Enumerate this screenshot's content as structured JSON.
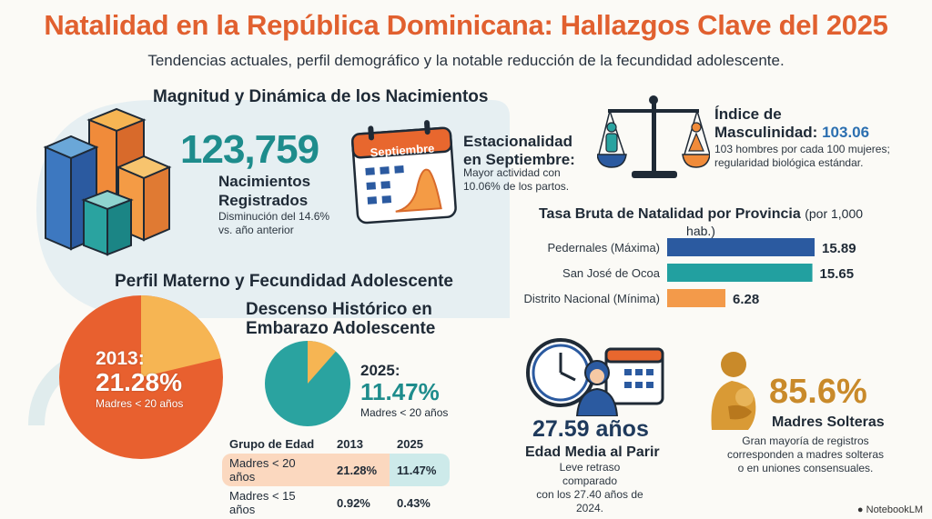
{
  "header": {
    "title": "Natalidad en la República Dominicana: Hallazgos Clave del 2025",
    "subtitle": "Tendencias actuales, perfil demográfico y la notable reducción de la fecundidad adolescente."
  },
  "births": {
    "heading": "Magnitud y Dinámica de los Nacimientos",
    "total": "123,759",
    "label_line1": "Nacimientos",
    "label_line2": "Registrados",
    "note_line1": "Disminución del 14.6%",
    "note_line2": "vs. año anterior",
    "calendar_month": "Septiembre"
  },
  "seasonality": {
    "title_line1": "Estacionalidad",
    "title_line2": "en Septiembre:",
    "text_line1": "Mayor actividad con",
    "text_line2": "10.06% de los partos."
  },
  "masculinity": {
    "title_line1": "Índice de",
    "title_line2": "Masculinidad:",
    "value": "103.06",
    "text_line1": "103 hombres por cada 100 mujeres;",
    "text_line2": "regularidad biológica estándar."
  },
  "chart_data": {
    "type": "bar",
    "title": "Tasa Bruta de Natalidad por Provincia",
    "title_unit": "(por 1,000 hab.)",
    "categories": [
      "Pedernales (Máxima)",
      "San José de Ocoa",
      "Distrito Nacional (Mínima)"
    ],
    "values": [
      15.89,
      15.65,
      6.28
    ],
    "value_labels": [
      "15.89",
      "15.65",
      "6.28"
    ],
    "colors": [
      "#2b5aa0",
      "#22a0a0",
      "#f39a4a"
    ],
    "xlim": [
      0,
      15.89
    ]
  },
  "maternal": {
    "heading": "Perfil Materno y Fecundidad Adolescente",
    "year_2013": "2013:",
    "pct_2013": "21.28%",
    "label_2013": "Madres < 20 años",
    "pie_2013_fraction": 0.2128,
    "descent_line1": "Descenso Histórico en",
    "descent_line2": "Embarazo Adolescente",
    "year_2025": "2025:",
    "pct_2025": "11.47%",
    "label_2025": "Madres < 20 años",
    "pie_2025_fraction": 0.1147
  },
  "table": {
    "headers": [
      "Grupo de Edad",
      "2013",
      "2025"
    ],
    "rows": [
      [
        "Madres < 20 años",
        "21.28%",
        "11.47%"
      ],
      [
        "Madres < 15 años",
        "0.92%",
        "0.43%"
      ]
    ]
  },
  "age": {
    "value": "27.59 años",
    "title": "Edad Media al Parir",
    "text_line1": "Leve retraso comparado",
    "text_line2": "con los 27.40 años de 2024."
  },
  "single": {
    "value": "85.6%",
    "title": "Madres Solteras",
    "text_line1": "Gran mayoría de registros",
    "text_line2": "corresponden a madres solteras",
    "text_line3": "o en uniones consensuales."
  },
  "brand": "NotebookLM"
}
